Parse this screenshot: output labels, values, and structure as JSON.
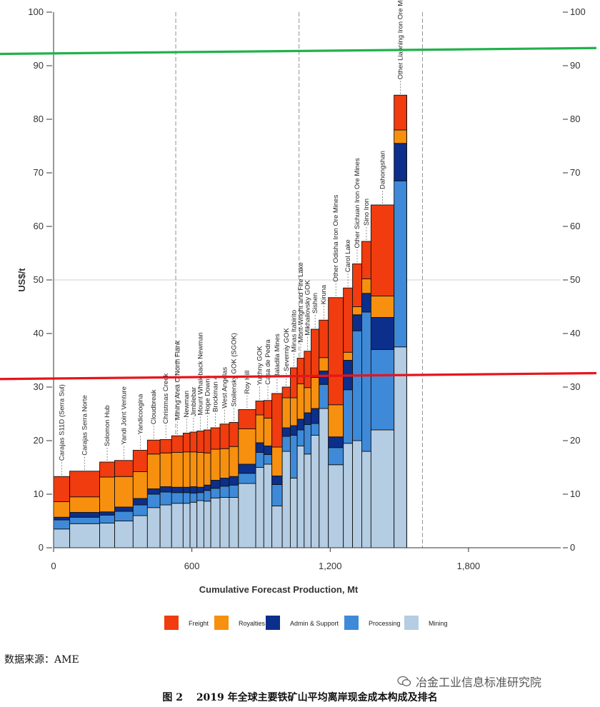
{
  "chart_data": {
    "type": "bar",
    "subtype": "stacked-variable-width-cost-curve",
    "xlabel": "Cumulative Forecast Production, Mt",
    "ylabel": "US$/t",
    "xlim": [
      0,
      2200
    ],
    "ylim": [
      0,
      100
    ],
    "y_ticks": [
      0,
      10,
      20,
      30,
      40,
      50,
      60,
      70,
      80,
      90,
      100
    ],
    "x_ticks": [
      0,
      600,
      1200,
      1800
    ],
    "x_tick_labels": [
      "0",
      "600",
      "1,200",
      "1,800"
    ],
    "grid": "horizontal at 50, dashed verticals at 530, 1065, 1600",
    "legend_position": "bottom",
    "components": [
      {
        "name": "Freight",
        "color": "#f03c0f"
      },
      {
        "name": "Royalties",
        "color": "#f7900f"
      },
      {
        "name": "Admin & Support",
        "color": "#0b2f8a"
      },
      {
        "name": "Processing",
        "color": "#3e8ad8"
      },
      {
        "name": "Mining",
        "color": "#b5cde3"
      }
    ],
    "mines": [
      {
        "name": "Carajas S11D (Serra Sul)",
        "width": 70,
        "values": [
          3.5,
          1.7,
          0.5,
          2.9,
          4.7
        ]
      },
      {
        "name": "Carajas Serra Norte",
        "width": 130,
        "values": [
          4.5,
          1.2,
          0.9,
          2.9,
          4.8
        ]
      },
      {
        "name": "Solomon Hub",
        "width": 65,
        "values": [
          4.6,
          1.5,
          0.6,
          6.5,
          2.8
        ]
      },
      {
        "name": "Yandi Joint Venture",
        "width": 80,
        "values": [
          5.0,
          1.8,
          0.8,
          5.7,
          3.0
        ]
      },
      {
        "name": "Yandicoogina",
        "width": 62,
        "values": [
          6.0,
          2.0,
          1.2,
          5.0,
          4.0
        ]
      },
      {
        "name": "Cloudbreak",
        "width": 55,
        "values": [
          7.5,
          2.5,
          1.0,
          6.5,
          2.6
        ]
      },
      {
        "name": "Christmas Creek",
        "width": 50,
        "values": [
          8.0,
          2.4,
          1.0,
          6.3,
          2.5
        ]
      },
      {
        "name": "Mining Area C North Flank",
        "width": 50,
        "values": [
          8.3,
          2.0,
          1.0,
          6.5,
          3.1
        ]
      },
      {
        "name": "Newman",
        "width": 30,
        "values": [
          8.3,
          2.0,
          1.0,
          6.6,
          3.5
        ]
      },
      {
        "name": "Jimblebar",
        "width": 30,
        "values": [
          8.5,
          1.7,
          1.2,
          6.5,
          3.7
        ]
      },
      {
        "name": "Mount Whaleback Newman",
        "width": 30,
        "values": [
          8.8,
          1.5,
          1.0,
          6.5,
          4.0
        ]
      },
      {
        "name": "Hope Downs",
        "width": 30,
        "values": [
          8.7,
          2.0,
          1.0,
          6.0,
          4.3
        ]
      },
      {
        "name": "Brockman 4",
        "width": 40,
        "values": [
          9.3,
          1.8,
          1.5,
          5.8,
          4.0
        ]
      },
      {
        "name": "West Angelas",
        "width": 40,
        "values": [
          9.4,
          2.1,
          1.5,
          5.5,
          4.6
        ]
      },
      {
        "name": "Stoilensky GOK (SGOK)",
        "width": 40,
        "values": [
          9.4,
          2.3,
          1.6,
          5.6,
          4.5
        ]
      },
      {
        "name": "Roy Hill",
        "width": 75,
        "values": [
          12.0,
          1.9,
          1.7,
          6.6,
          3.6
        ]
      },
      {
        "name": "Yuzhny GOK",
        "width": 35,
        "values": [
          15.0,
          2.8,
          1.8,
          5.2,
          2.6
        ]
      },
      {
        "name": "Casa de Pedra",
        "width": 35,
        "values": [
          15.6,
          1.8,
          1.6,
          5.2,
          3.3
        ]
      },
      {
        "name": "Baladila Mines",
        "width": 45,
        "values": [
          7.8,
          4.0,
          1.6,
          5.4,
          10.0
        ]
      },
      {
        "name": "Severniy GOK",
        "width": 35,
        "values": [
          18.0,
          2.8,
          1.6,
          5.6,
          2.0
        ]
      },
      {
        "name": "Minas Itabirito",
        "width": 30,
        "values": [
          13.0,
          8.0,
          1.8,
          5.2,
          5.6
        ]
      },
      {
        "name": "Mont-Wright and Fire Lake",
        "width": 30,
        "values": [
          19.0,
          3.0,
          2.0,
          6.6,
          4.8
        ]
      },
      {
        "name": "Mikhailovsky GOK",
        "width": 30,
        "values": [
          17.5,
          5.5,
          2.2,
          4.7,
          6.8
        ]
      },
      {
        "name": "Sishen",
        "width": 35,
        "values": [
          21.0,
          2.2,
          2.8,
          5.8,
          9.0
        ]
      },
      {
        "name": "Kiruna",
        "width": 40,
        "values": [
          26.0,
          4.5,
          2.5,
          2.5,
          7.0
        ]
      },
      {
        "name": "Other Odisha Iron Ore Mines",
        "width": 65,
        "values": [
          15.5,
          3.2,
          2.0,
          6.0,
          20.0
        ]
      },
      {
        "name": "Carol Lake",
        "width": 40,
        "values": [
          19.5,
          10.0,
          5.5,
          1.5,
          12.0
        ]
      },
      {
        "name": "Other Sichuan Iron Ore Mines",
        "width": 40,
        "values": [
          20.0,
          20.5,
          3.0,
          1.5,
          8.0
        ]
      },
      {
        "name": "Sino Iron",
        "width": 40,
        "values": [
          18.0,
          26.0,
          3.5,
          2.7,
          7.0
        ]
      },
      {
        "name": "Dahongshan",
        "width": 100,
        "values": [
          22.0,
          15.0,
          6.0,
          4.0,
          17.0
        ]
      },
      {
        "name": "Other Liaoning Iron Ore Mines",
        "width": 55,
        "values": [
          37.5,
          31.0,
          7.0,
          2.5,
          6.5
        ]
      }
    ]
  },
  "reference_lines": [
    {
      "y_start": 92.2,
      "y_end": 93.3,
      "color": "#22b14c"
    },
    {
      "y_start": 31.5,
      "y_end": 32.6,
      "color": "#e8141b"
    }
  ],
  "source": "数据来源：AME",
  "watermark": "冶金工业信息标准研究院",
  "caption": "图 2　 2019 年全球主要铁矿山平均离岸现金成本构成及排名"
}
